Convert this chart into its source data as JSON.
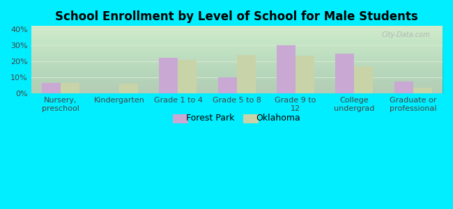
{
  "title": "School Enrollment by Level of School for Male Students",
  "categories": [
    "Nursery,\npreschool",
    "Kindergarten",
    "Grade 1 to 4",
    "Grade 5 to 8",
    "Grade 9 to\n12",
    "College\nundergrad",
    "Graduate or\nprofessional"
  ],
  "forest_park": [
    6.5,
    0,
    22,
    10,
    30,
    25,
    7.5
  ],
  "oklahoma": [
    6.5,
    6,
    21,
    24,
    23.5,
    17,
    3.5
  ],
  "forest_park_color": "#c9a8d4",
  "oklahoma_color": "#c8d4a8",
  "background_color": "#00eeff",
  "ylim": [
    0,
    42
  ],
  "yticks": [
    0,
    10,
    20,
    30,
    40
  ],
  "bar_width": 0.32,
  "legend_labels": [
    "Forest Park",
    "Oklahoma"
  ],
  "grid_color": "#d8e8d0",
  "title_fontsize": 12,
  "tick_fontsize": 8,
  "watermark": "City-Data.com"
}
